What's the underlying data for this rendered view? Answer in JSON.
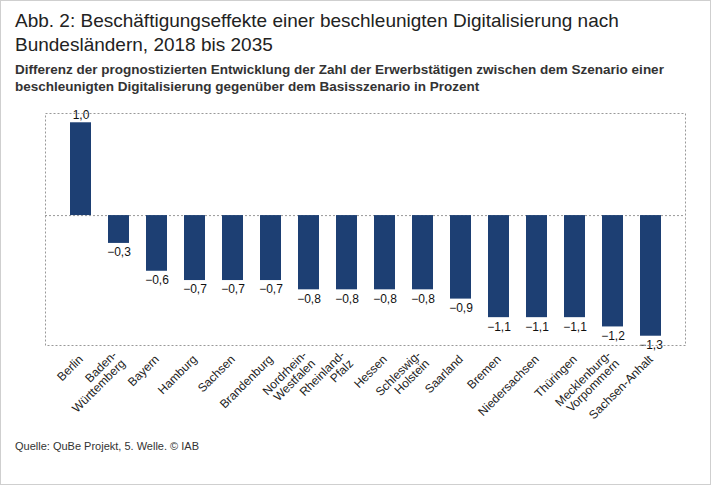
{
  "chart_data": {
    "type": "bar",
    "title": "Abb. 2: Beschäftigungseffekte einer beschleunigten Digitalisierung nach Bundesländern, 2018 bis 2035",
    "subtitle": "Differenz der prognostizierten Entwicklung der Zahl der Erwerbstätigen zwischen dem Szenario einer beschleunigten Digitalisierung gegenüber dem Basisszenario in Prozent",
    "caption": "Quelle: QuBe Projekt, 5. Welle. © IAB",
    "categories": [
      "Berlin",
      "Baden-\nWürttemberg",
      "Bayern",
      "Hamburg",
      "Sachsen",
      "Brandenburg",
      "Nordrhein-\nWestfalen",
      "Rheinland-\nPfalz",
      "Hessen",
      "Schleswig-\nHolstein",
      "Saarland",
      "Bremen",
      "Niedersachsen",
      "Thüringen",
      "Mecklenburg-\nVorpommern",
      "Sachsen-Anhalt"
    ],
    "values": [
      1.0,
      -0.3,
      -0.6,
      -0.7,
      -0.7,
      -0.7,
      -0.8,
      -0.8,
      -0.8,
      -0.8,
      -0.9,
      -1.1,
      -1.1,
      -1.1,
      -1.2,
      -1.3
    ],
    "value_labels": [
      "1,0",
      "−0,3",
      "−0,6",
      "−0,7",
      "−0,7",
      "−0,7",
      "−0,8",
      "−0,8",
      "−0,8",
      "−0,8",
      "−0,9",
      "−1,1",
      "−1,1",
      "−1,1",
      "−1,2",
      "−1,3"
    ],
    "color": "#1d3f73",
    "ylim": [
      -1.4,
      1.1
    ],
    "yticks": [
      0
    ],
    "grid": true,
    "data_labels": true,
    "tick_labels": "x"
  }
}
